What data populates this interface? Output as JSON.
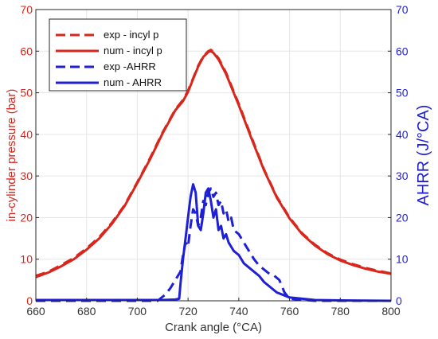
{
  "chart_data": {
    "type": "line",
    "xlabel": "Crank angle (°CA)",
    "ylabel_left": "in-cylinder pressure (bar)",
    "ylabel_right": "AHRR (J/°CA)",
    "xlim": [
      660,
      800
    ],
    "ylim_left": [
      0,
      70
    ],
    "ylim_right": [
      0,
      70
    ],
    "xticks": [
      660,
      680,
      700,
      720,
      740,
      760,
      780,
      800
    ],
    "yticks_left": [
      0,
      10,
      20,
      30,
      40,
      50,
      60,
      70
    ],
    "yticks_right": [
      0,
      10,
      20,
      30,
      40,
      50,
      60,
      70
    ],
    "grid": true,
    "legend_position": "top-left",
    "colors": {
      "pressure": "#d9261c",
      "ahrr": "#1f1fd6",
      "grid": "#e6e6e6"
    },
    "series": [
      {
        "name": "exp - incyl p",
        "axis": "left",
        "style": "dashed",
        "x": [
          660,
          665,
          670,
          675,
          680,
          685,
          690,
          695,
          700,
          705,
          710,
          715,
          718,
          720,
          722,
          724,
          726,
          728,
          729,
          730,
          732,
          735,
          740,
          745,
          750,
          755,
          760,
          765,
          770,
          775,
          780,
          785,
          790,
          795,
          800
        ],
        "y": [
          6.0,
          7.0,
          8.6,
          10.3,
          12.6,
          15.3,
          18.8,
          23.0,
          28.5,
          34.3,
          40.5,
          46.0,
          48.3,
          50.5,
          53.5,
          56.5,
          58.8,
          60.0,
          60.3,
          59.8,
          58.3,
          54.8,
          47.3,
          39.3,
          31.5,
          25.0,
          20.0,
          16.2,
          13.5,
          11.4,
          9.9,
          8.8,
          7.9,
          7.2,
          6.6
        ]
      },
      {
        "name": "num - incyl p",
        "axis": "left",
        "style": "solid",
        "x": [
          660,
          665,
          670,
          675,
          680,
          685,
          690,
          695,
          700,
          705,
          710,
          715,
          718,
          720,
          722,
          724,
          726,
          728,
          729,
          730,
          732,
          735,
          740,
          745,
          750,
          755,
          760,
          765,
          770,
          775,
          780,
          785,
          790,
          795,
          800
        ],
        "y": [
          5.7,
          6.8,
          8.3,
          10.0,
          12.3,
          15.0,
          18.5,
          22.8,
          28.3,
          34.0,
          40.3,
          45.8,
          48.0,
          50.2,
          53.3,
          56.3,
          58.6,
          59.8,
          60.0,
          59.6,
          58.0,
          54.5,
          47.0,
          39.0,
          31.3,
          24.8,
          19.8,
          16.0,
          13.3,
          11.2,
          9.7,
          8.6,
          7.7,
          7.0,
          6.5
        ]
      },
      {
        "name": "exp -AHRR",
        "axis": "right",
        "style": "dashed",
        "x": [
          660,
          700,
          708,
          711,
          713,
          715,
          717,
          718,
          719,
          720,
          721,
          722,
          723,
          724,
          725,
          726,
          727,
          728,
          729,
          730,
          731,
          732,
          733,
          734,
          735,
          736,
          737,
          738,
          740,
          742,
          744,
          746,
          748,
          750,
          752,
          754,
          756,
          758,
          760,
          770,
          780,
          800
        ],
        "y": [
          0,
          0,
          0,
          1.5,
          3,
          5,
          7,
          11,
          14,
          13,
          18,
          22,
          21,
          18,
          20,
          24,
          23,
          26,
          27,
          25,
          26,
          23,
          24,
          21,
          22,
          19,
          20,
          17,
          16,
          14,
          12,
          10,
          8.5,
          7.5,
          6.5,
          6.0,
          5.0,
          2.0,
          0.5,
          0,
          0,
          0
        ]
      },
      {
        "name": "num - AHRR",
        "axis": "right",
        "style": "solid",
        "x": [
          660,
          700,
          710,
          715,
          716.5,
          717,
          718,
          719,
          720,
          721,
          722,
          723,
          724,
          725,
          726,
          727,
          728,
          729,
          730,
          731,
          732,
          733,
          734,
          735,
          736,
          737,
          738,
          740,
          742,
          744,
          746,
          748,
          750,
          755,
          760,
          770,
          780,
          800
        ],
        "y": [
          0.2,
          0.2,
          0.2,
          0.3,
          0.5,
          4,
          10,
          15,
          20,
          25,
          28,
          26,
          18,
          17,
          21,
          26,
          27,
          24,
          20,
          22,
          17,
          18,
          15,
          16,
          14,
          13,
          12,
          11,
          9,
          8,
          7,
          6,
          4.5,
          2.0,
          0.8,
          0.2,
          0.1,
          0
        ]
      }
    ]
  }
}
